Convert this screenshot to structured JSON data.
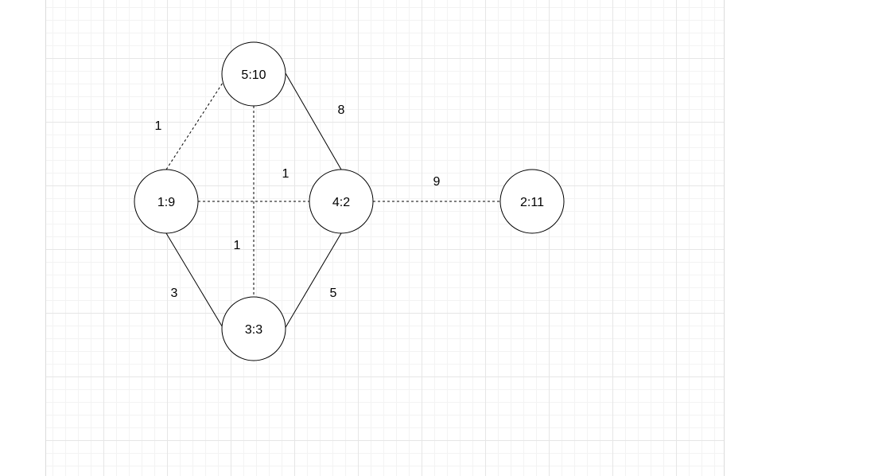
{
  "diagram": {
    "nodes": [
      {
        "id": "n5",
        "label": "5:10"
      },
      {
        "id": "n1",
        "label": "1:9"
      },
      {
        "id": "n4",
        "label": "4:2"
      },
      {
        "id": "n2",
        "label": "2:11"
      },
      {
        "id": "n3",
        "label": "3:3"
      }
    ],
    "edges": [
      {
        "id": "e-1-5",
        "from": "n1",
        "to": "n5",
        "weight": "1",
        "style": "dashed"
      },
      {
        "id": "e-5-4",
        "from": "n5",
        "to": "n4",
        "weight": "8",
        "style": "solid"
      },
      {
        "id": "e-5-3",
        "from": "n5",
        "to": "n3",
        "weight": "1",
        "style": "dashed"
      },
      {
        "id": "e-1-4",
        "from": "n1",
        "to": "n4",
        "weight": "1",
        "style": "dashed"
      },
      {
        "id": "e-4-2",
        "from": "n4",
        "to": "n2",
        "weight": "9",
        "style": "dashed"
      },
      {
        "id": "e-1-3",
        "from": "n1",
        "to": "n3",
        "weight": "3",
        "style": "solid"
      },
      {
        "id": "e-4-3",
        "from": "n4",
        "to": "n3",
        "weight": "5",
        "style": "solid"
      }
    ],
    "colors": {
      "stroke": "#000000",
      "node_fill": "#ffffff",
      "grid": "#e6e6e6",
      "background": "#ffffff"
    }
  }
}
